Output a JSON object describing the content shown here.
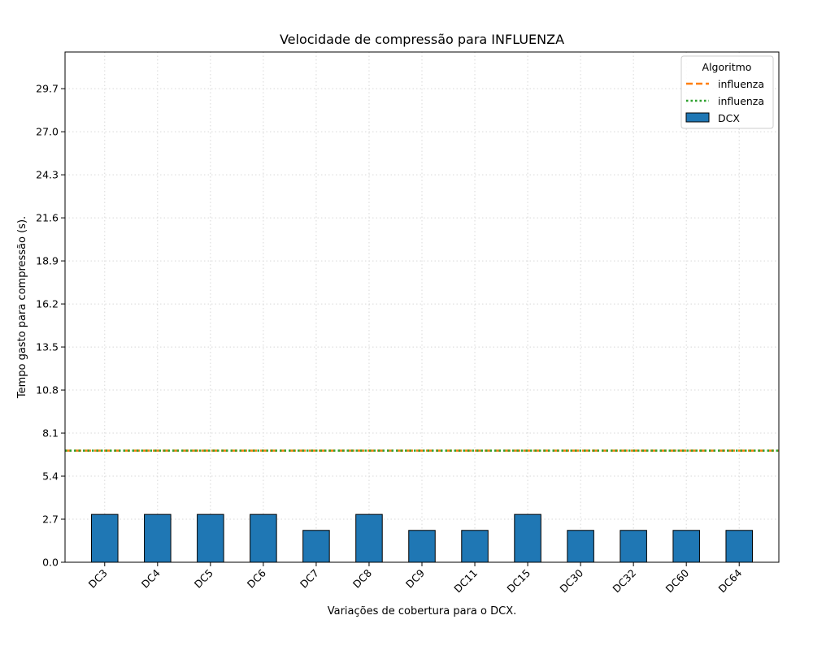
{
  "chart_data": {
    "type": "bar",
    "title": "Velocidade de compressão para  INFLUENZA",
    "xlabel": "Variações de cobertura para o DCX.",
    "ylabel": "Tempo gasto para compressão (s).",
    "categories": [
      "DC3",
      "DC4",
      "DC5",
      "DC6",
      "DC7",
      "DC8",
      "DC9",
      "DC11",
      "DC15",
      "DC30",
      "DC32",
      "DC60",
      "DC64"
    ],
    "series": [
      {
        "name": "DCX",
        "values": [
          3,
          3,
          3,
          3,
          2,
          3,
          2,
          2,
          3,
          2,
          2,
          2,
          2
        ],
        "color": "#1f77b4"
      }
    ],
    "reference_lines": [
      {
        "name": "influenza",
        "value": 7.0,
        "style": "dashed",
        "color": "#ff7f0e"
      },
      {
        "name": "influenza",
        "value": 7.0,
        "style": "dotted",
        "color": "#2ca02c"
      }
    ],
    "yticks": [
      "0.0",
      "2.7",
      "5.4",
      "8.1",
      "10.8",
      "13.5",
      "16.2",
      "18.9",
      "21.6",
      "24.3",
      "27.0",
      "29.7"
    ],
    "ylim": [
      0,
      32
    ],
    "grid": true,
    "legend": {
      "title": "Algoritmo",
      "position": "top-right"
    }
  }
}
